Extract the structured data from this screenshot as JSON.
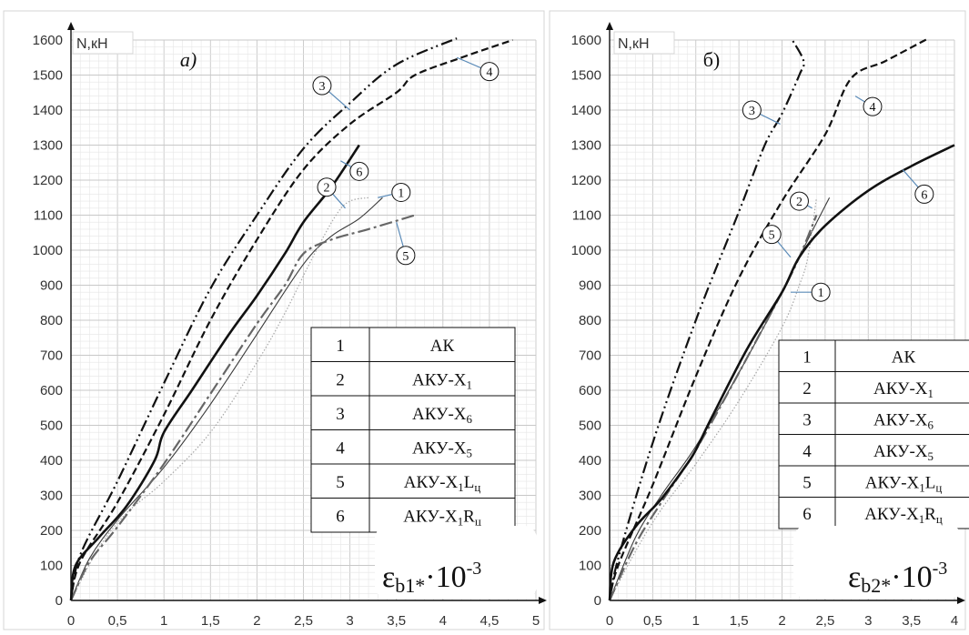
{
  "chart_data": [
    {
      "type": "line",
      "panel_label": "а)",
      "ylabel": "N,кН",
      "xlabel_base": "ε",
      "xlabel_sub": "b1*",
      "xlabel_tail": "·10",
      "xlabel_exp": "-3",
      "xlim": [
        0,
        5
      ],
      "ylim": [
        0,
        1600
      ],
      "xticks": [
        "0",
        "0,5",
        "1",
        "1,5",
        "2",
        "2,5",
        "3",
        "3,5",
        "4",
        "4,5",
        "5"
      ],
      "yticks": [
        "0",
        "100",
        "200",
        "300",
        "400",
        "500",
        "600",
        "700",
        "800",
        "900",
        "1000",
        "1100",
        "1200",
        "1300",
        "1400",
        "1500",
        "1600"
      ],
      "grid": true,
      "series": [
        {
          "name": "1",
          "style": "thin",
          "points": [
            [
              0,
              0
            ],
            [
              0.2,
              120
            ],
            [
              0.5,
              230
            ],
            [
              1,
              380
            ],
            [
              1.5,
              560
            ],
            [
              2,
              760
            ],
            [
              2.5,
              960
            ],
            [
              2.8,
              1040
            ],
            [
              3.1,
              1090
            ],
            [
              3.35,
              1150
            ]
          ]
        },
        {
          "name": "2",
          "style": "dotted",
          "points": [
            [
              0,
              0
            ],
            [
              0.3,
              150
            ],
            [
              0.6,
              250
            ],
            [
              1,
              340
            ],
            [
              1.5,
              480
            ],
            [
              2,
              680
            ],
            [
              2.3,
              820
            ],
            [
              2.6,
              980
            ],
            [
              2.85,
              1100
            ],
            [
              3.0,
              1140
            ],
            [
              3.2,
              1150
            ]
          ]
        },
        {
          "name": "3",
          "style": "dashdotdot",
          "points": [
            [
              0,
              0
            ],
            [
              0.1,
              130
            ],
            [
              0.5,
              340
            ],
            [
              1,
              620
            ],
            [
              1.5,
              890
            ],
            [
              2,
              1100
            ],
            [
              2.5,
              1290
            ],
            [
              3,
              1420
            ],
            [
              3.5,
              1530
            ],
            [
              4.15,
              1605
            ]
          ]
        },
        {
          "name": "4",
          "style": "dashed",
          "points": [
            [
              0,
              0
            ],
            [
              0.1,
              110
            ],
            [
              0.5,
              280
            ],
            [
              1,
              530
            ],
            [
              1.5,
              800
            ],
            [
              2,
              1030
            ],
            [
              2.5,
              1230
            ],
            [
              3,
              1360
            ],
            [
              3.5,
              1450
            ],
            [
              3.7,
              1500
            ],
            [
              4.2,
              1550
            ],
            [
              4.75,
              1600
            ]
          ]
        },
        {
          "name": "5",
          "style": "dashdot",
          "points": [
            [
              0,
              0
            ],
            [
              0.2,
              110
            ],
            [
              0.5,
              210
            ],
            [
              1,
              390
            ],
            [
              1.5,
              590
            ],
            [
              2,
              790
            ],
            [
              2.3,
              900
            ],
            [
              2.5,
              990
            ],
            [
              2.8,
              1030
            ],
            [
              3.2,
              1060
            ],
            [
              3.7,
              1100
            ]
          ]
        },
        {
          "name": "6",
          "style": "solid",
          "points": [
            [
              0,
              0
            ],
            [
              0.05,
              100
            ],
            [
              0.3,
              180
            ],
            [
              0.6,
              270
            ],
            [
              0.9,
              400
            ],
            [
              1,
              480
            ],
            [
              1.3,
              600
            ],
            [
              1.7,
              760
            ],
            [
              2,
              870
            ],
            [
              2.3,
              990
            ],
            [
              2.5,
              1080
            ],
            [
              2.8,
              1180
            ],
            [
              3.1,
              1300
            ]
          ]
        }
      ],
      "callouts": [
        {
          "label": "1",
          "target": [
            3.3,
            1150
          ],
          "circle": [
            3.55,
            1165
          ]
        },
        {
          "label": "2",
          "target": [
            2.95,
            1120
          ],
          "circle": [
            2.75,
            1180
          ]
        },
        {
          "label": "3",
          "target": [
            3.0,
            1400
          ],
          "circle": [
            2.7,
            1470
          ]
        },
        {
          "label": "4",
          "target": [
            4.15,
            1550
          ],
          "circle": [
            4.5,
            1510
          ]
        },
        {
          "label": "5",
          "target": [
            3.5,
            1080
          ],
          "circle": [
            3.6,
            985
          ]
        },
        {
          "label": "6",
          "target": [
            2.9,
            1255
          ],
          "circle": [
            3.1,
            1225
          ]
        }
      ],
      "legend_position": "lower-right",
      "legend": [
        {
          "num": "1",
          "base": "АК",
          "s1": "",
          "m": "",
          "s2": ""
        },
        {
          "num": "2",
          "base": "АКУ-Х",
          "s1": "1",
          "m": "",
          "s2": ""
        },
        {
          "num": "3",
          "base": "АКУ-Х",
          "s1": "6",
          "m": "",
          "s2": ""
        },
        {
          "num": "4",
          "base": "АКУ-Х",
          "s1": "5",
          "m": "",
          "s2": ""
        },
        {
          "num": "5",
          "base": "АКУ-Х",
          "s1": "1",
          "m": "L",
          "s2": "ц"
        },
        {
          "num": "6",
          "base": "АКУ-Х",
          "s1": "1",
          "m": "R",
          "s2": "ц"
        }
      ]
    },
    {
      "type": "line",
      "panel_label": "б)",
      "ylabel": "N,кН",
      "xlabel_base": "ε",
      "xlabel_sub": "b2*",
      "xlabel_tail": "·10",
      "xlabel_exp": "-3",
      "xlim": [
        0,
        4
      ],
      "ylim": [
        0,
        1600
      ],
      "xticks": [
        "0",
        "0,5",
        "1",
        "1,5",
        "2",
        "2,5",
        "3",
        "3,5",
        "4"
      ],
      "yticks": [
        "0",
        "100",
        "200",
        "300",
        "400",
        "500",
        "600",
        "700",
        "800",
        "900",
        "1000",
        "1100",
        "1200",
        "1300",
        "1400",
        "1500",
        "1600"
      ],
      "grid": true,
      "series": [
        {
          "name": "1",
          "style": "thin",
          "points": [
            [
              0,
              0
            ],
            [
              0.3,
              180
            ],
            [
              0.6,
              300
            ],
            [
              1,
              440
            ],
            [
              1.5,
              650
            ],
            [
              2,
              880
            ],
            [
              2.3,
              1030
            ],
            [
              2.55,
              1150
            ]
          ]
        },
        {
          "name": "2",
          "style": "dotted",
          "points": [
            [
              0,
              0
            ],
            [
              0.3,
              140
            ],
            [
              0.6,
              260
            ],
            [
              1,
              390
            ],
            [
              1.5,
              570
            ],
            [
              2,
              780
            ],
            [
              2.2,
              900
            ],
            [
              2.3,
              980
            ],
            [
              2.4,
              1150
            ]
          ]
        },
        {
          "name": "3",
          "style": "dashdotdot",
          "points": [
            [
              0,
              0
            ],
            [
              0.1,
              120
            ],
            [
              0.5,
              450
            ],
            [
              1,
              800
            ],
            [
              1.5,
              1110
            ],
            [
              1.8,
              1300
            ],
            [
              2.0,
              1390
            ],
            [
              2.2,
              1500
            ],
            [
              2.25,
              1540
            ],
            [
              2.12,
              1600
            ]
          ]
        },
        {
          "name": "4",
          "style": "dashed",
          "points": [
            [
              0,
              0
            ],
            [
              0.1,
              100
            ],
            [
              0.5,
              330
            ],
            [
              1,
              640
            ],
            [
              1.5,
              920
            ],
            [
              2,
              1140
            ],
            [
              2.5,
              1330
            ],
            [
              2.8,
              1490
            ],
            [
              3.2,
              1540
            ],
            [
              3.7,
              1605
            ]
          ]
        },
        {
          "name": "5",
          "style": "dashdot",
          "points": [
            [
              0,
              0
            ],
            [
              0.3,
              160
            ],
            [
              0.6,
              280
            ],
            [
              1,
              430
            ],
            [
              1.5,
              650
            ],
            [
              2,
              880
            ],
            [
              2.2,
              980
            ],
            [
              2.4,
              1100
            ]
          ]
        },
        {
          "name": "6",
          "style": "solid",
          "points": [
            [
              0,
              0
            ],
            [
              0.05,
              110
            ],
            [
              0.3,
              210
            ],
            [
              0.6,
              290
            ],
            [
              0.9,
              390
            ],
            [
              1,
              430
            ],
            [
              1.2,
              530
            ],
            [
              1.6,
              720
            ],
            [
              2,
              880
            ],
            [
              2.2,
              980
            ],
            [
              2.5,
              1070
            ],
            [
              3,
              1170
            ],
            [
              3.5,
              1240
            ],
            [
              4,
              1300
            ]
          ]
        }
      ],
      "callouts": [
        {
          "label": "1",
          "target": [
            2.1,
            880
          ],
          "circle": [
            2.45,
            880
          ]
        },
        {
          "label": "2",
          "target": [
            2.35,
            1120
          ],
          "circle": [
            2.2,
            1140
          ]
        },
        {
          "label": "3",
          "target": [
            1.98,
            1360
          ],
          "circle": [
            1.65,
            1400
          ]
        },
        {
          "label": "4",
          "target": [
            2.85,
            1440
          ],
          "circle": [
            3.05,
            1410
          ]
        },
        {
          "label": "5",
          "target": [
            2.1,
            980
          ],
          "circle": [
            1.88,
            1045
          ]
        },
        {
          "label": "6",
          "target": [
            3.4,
            1230
          ],
          "circle": [
            3.65,
            1160
          ]
        }
      ],
      "legend_position": "lower-right",
      "legend": [
        {
          "num": "1",
          "base": "АК",
          "s1": "",
          "m": "",
          "s2": ""
        },
        {
          "num": "2",
          "base": "АКУ-Х",
          "s1": "1",
          "m": "",
          "s2": ""
        },
        {
          "num": "3",
          "base": "АКУ-Х",
          "s1": "6",
          "m": "",
          "s2": ""
        },
        {
          "num": "4",
          "base": "АКУ-Х",
          "s1": "5",
          "m": "",
          "s2": ""
        },
        {
          "num": "5",
          "base": "АКУ-Х",
          "s1": "1",
          "m": "L",
          "s2": "ц"
        },
        {
          "num": "6",
          "base": "АКУ-Х",
          "s1": "1",
          "m": "R",
          "s2": "ц"
        }
      ]
    }
  ]
}
